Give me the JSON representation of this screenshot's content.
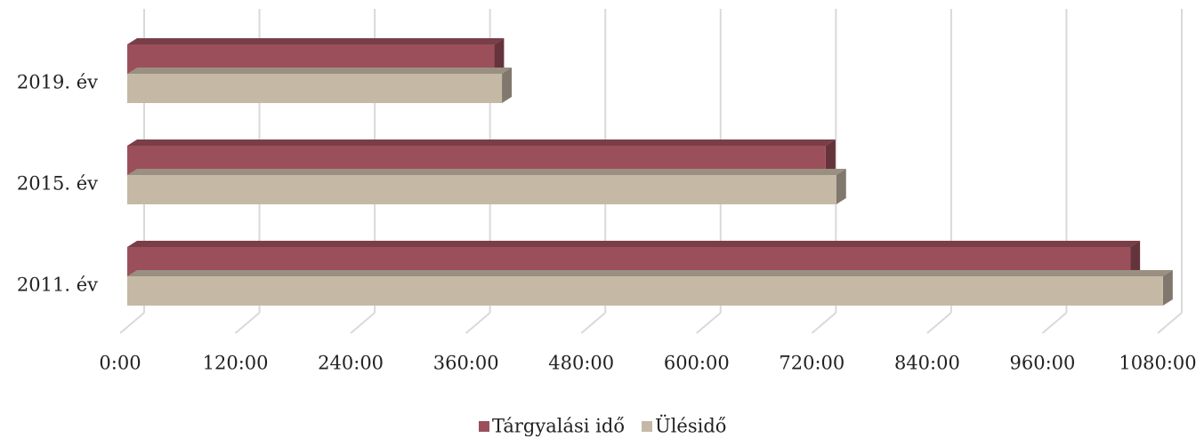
{
  "chart_data": {
    "type": "bar3d_horizontal",
    "categories": [
      "2011. év",
      "2015. év",
      "2019. év"
    ],
    "series": [
      {
        "name": "Tárgyalási idő",
        "color": "#9b4f5b",
        "values": [
          1044,
          727,
          382
        ]
      },
      {
        "name": "Ülésidő",
        "color": "#c5b9a6",
        "values": [
          1078,
          738,
          390
        ]
      }
    ],
    "xlim": [
      0,
      1080
    ],
    "xticks": [
      {
        "value": 0,
        "label": "0:00"
      },
      {
        "value": 120,
        "label": "120:00"
      },
      {
        "value": 240,
        "label": "240:00"
      },
      {
        "value": 360,
        "label": "360:00"
      },
      {
        "value": 480,
        "label": "480:00"
      },
      {
        "value": 600,
        "label": "600:00"
      },
      {
        "value": 720,
        "label": "720:00"
      },
      {
        "value": 840,
        "label": "840:00"
      },
      {
        "value": 960,
        "label": "960:00"
      },
      {
        "value": 1080,
        "label": "1080:00"
      }
    ],
    "grid": true,
    "legend": "bottom"
  }
}
